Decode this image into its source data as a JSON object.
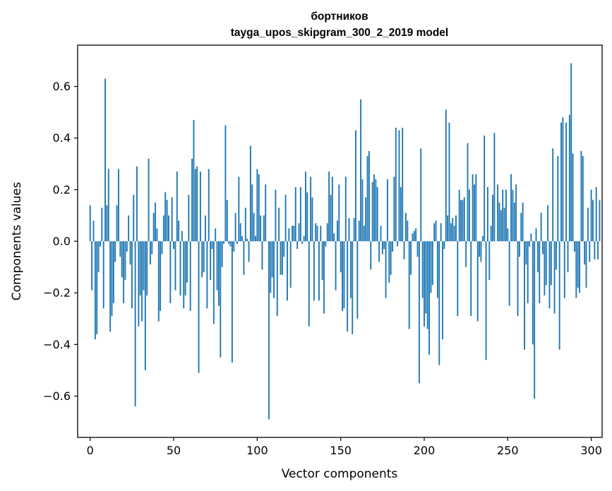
{
  "chart_data": {
    "type": "bar",
    "title": [
      "бортников",
      "tayga_upos_skipgram_300_2_2019 model"
    ],
    "xlabel": "Vector components",
    "ylabel": "Components values",
    "xlim": [
      -7.5,
      306.5
    ],
    "ylim": [
      -0.76,
      0.76
    ],
    "xticks": [
      0,
      50,
      100,
      150,
      200,
      250,
      300
    ],
    "xtick_labels": [
      "0",
      "50",
      "100",
      "150",
      "200",
      "250",
      "300"
    ],
    "yticks": [
      -0.6,
      -0.4,
      -0.2,
      0.0,
      0.2,
      0.4,
      0.6
    ],
    "ytick_labels": [
      "−0.6",
      "−0.4",
      "−0.2",
      "0.0",
      "0.2",
      "0.4",
      "0.6"
    ],
    "bar_color": "#1f77b4",
    "values": [
      0.14,
      -0.19,
      0.08,
      -0.38,
      -0.36,
      -0.12,
      -0.02,
      0.13,
      -0.26,
      0.63,
      0.14,
      0.28,
      -0.35,
      -0.29,
      -0.24,
      -0.08,
      0.14,
      0.28,
      -0.06,
      -0.14,
      -0.24,
      -0.15,
      -0.04,
      0.1,
      -0.09,
      -0.26,
      0.18,
      -0.64,
      0.29,
      -0.33,
      -0.21,
      -0.31,
      -0.19,
      -0.5,
      -0.21,
      0.32,
      -0.09,
      -0.05,
      0.11,
      0.15,
      0.05,
      -0.31,
      -0.27,
      -0.05,
      0.1,
      0.19,
      0.16,
      0.1,
      -0.24,
      0.17,
      -0.03,
      -0.19,
      0.27,
      0.08,
      -0.21,
      0.04,
      -0.26,
      -0.21,
      -0.16,
      0.18,
      -0.27,
      0.32,
      0.47,
      0.28,
      0.29,
      -0.51,
      0.27,
      -0.14,
      -0.12,
      0.1,
      -0.26,
      0.28,
      -0.15,
      -0.03,
      -0.32,
      0.05,
      -0.19,
      -0.25,
      -0.45,
      -0.1,
      -0.01,
      0.45,
      0.16,
      -0.01,
      -0.02,
      -0.47,
      -0.04,
      0.11,
      -0.01,
      0.25,
      0.07,
      0.02,
      -0.13,
      0.13,
      0.01,
      -0.08,
      0.37,
      0.22,
      0.11,
      0.02,
      0.28,
      0.26,
      0.1,
      -0.11,
      0.1,
      0.22,
      0.0,
      -0.69,
      -0.2,
      -0.14,
      -0.22,
      0.2,
      -0.29,
      0.13,
      -0.13,
      -0.13,
      -0.06,
      0.18,
      -0.23,
      0.05,
      -0.18,
      0.06,
      0.06,
      0.21,
      -0.03,
      0.07,
      0.21,
      -0.01,
      0.02,
      0.27,
      0.19,
      -0.33,
      0.25,
      0.17,
      -0.23,
      0.07,
      0.06,
      -0.23,
      0.06,
      -0.15,
      -0.28,
      -0.02,
      0.07,
      0.27,
      0.18,
      0.25,
      0.03,
      -0.19,
      0.08,
      0.22,
      -0.12,
      -0.27,
      -0.26,
      0.25,
      -0.35,
      0.09,
      -0.22,
      -0.36,
      0.09,
      0.43,
      -0.3,
      0.08,
      0.55,
      0.24,
      0.06,
      0.17,
      0.33,
      0.35,
      -0.11,
      0.23,
      0.26,
      0.24,
      0.21,
      -0.08,
      0.06,
      -0.05,
      -0.03,
      -0.22,
      0.24,
      -0.16,
      -0.13,
      -0.04,
      0.25,
      0.44,
      -0.02,
      0.43,
      0.21,
      0.44,
      -0.07,
      0.11,
      0.08,
      -0.34,
      -0.13,
      0.03,
      0.04,
      0.05,
      -0.06,
      -0.55,
      0.36,
      -0.22,
      -0.33,
      -0.28,
      -0.34,
      -0.44,
      -0.2,
      -0.17,
      0.07,
      0.08,
      -0.22,
      -0.48,
      0.07,
      -0.38,
      -0.03,
      0.51,
      0.1,
      0.46,
      0.07,
      0.09,
      0.06,
      0.1,
      -0.29,
      0.2,
      0.16,
      0.16,
      0.17,
      -0.1,
      0.38,
      0.2,
      -0.29,
      0.26,
      0.22,
      0.26,
      -0.31,
      -0.06,
      -0.08,
      0.02,
      0.41,
      -0.46,
      0.21,
      -0.15,
      0.06,
      0.18,
      0.42,
      0.0,
      0.22,
      0.15,
      0.12,
      0.2,
      0.13,
      0.2,
      0.05,
      -0.25,
      0.26,
      0.2,
      0.15,
      0.22,
      -0.29,
      -0.06,
      0.11,
      0.15,
      -0.42,
      -0.09,
      -0.24,
      -0.02,
      0.03,
      -0.4,
      -0.61,
      0.05,
      -0.12,
      -0.24,
      0.11,
      -0.05,
      -0.21,
      -0.17,
      0.14,
      -0.26,
      -0.17,
      0.36,
      -0.28,
      -0.11,
      0.33,
      -0.42,
      0.46,
      0.48,
      -0.22,
      0.46,
      -0.12,
      0.49,
      0.69,
      0.34,
      -0.04,
      -0.22,
      -0.18,
      -0.2,
      0.35,
      0.33,
      -0.09,
      -0.18,
      0.13,
      -0.08,
      0.2,
      0.16,
      -0.07,
      0.21,
      -0.07,
      0.16
    ]
  }
}
